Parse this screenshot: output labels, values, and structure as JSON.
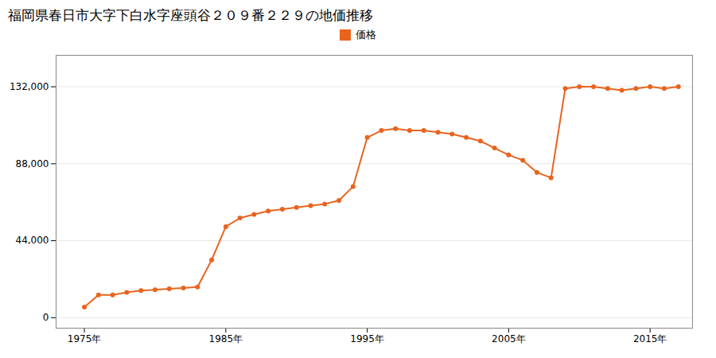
{
  "chart_data": {
    "type": "line",
    "title": "福岡県春日市大字下白水字座頭谷２０９番２２９の地価推移",
    "x": [
      1975,
      1976,
      1977,
      1978,
      1979,
      1980,
      1981,
      1982,
      1983,
      1984,
      1985,
      1986,
      1987,
      1988,
      1989,
      1990,
      1991,
      1992,
      1993,
      1994,
      1995,
      1996,
      1997,
      1998,
      1999,
      2000,
      2001,
      2002,
      2003,
      2004,
      2005,
      2006,
      2007,
      2008,
      2009,
      2010,
      2011,
      2012,
      2013,
      2014,
      2015,
      2016,
      2017
    ],
    "series": [
      {
        "name": "価格",
        "color": "#e8641e",
        "marker": "circle",
        "values": [
          6000,
          13000,
          13000,
          14500,
          15500,
          16000,
          16500,
          17000,
          17500,
          33000,
          52000,
          57000,
          59000,
          61000,
          62000,
          63000,
          64000,
          65000,
          67000,
          75000,
          103000,
          107000,
          108000,
          107000,
          107000,
          106000,
          105000,
          103000,
          101000,
          97000,
          93000,
          90000,
          83000,
          80000,
          131000,
          132000,
          132000,
          131000,
          130000,
          131000,
          132000,
          131000,
          132000
        ]
      }
    ],
    "xlim": [
      1973,
      2018
    ],
    "xticks": [
      {
        "value": 1975,
        "label": "1975年"
      },
      {
        "value": 1985,
        "label": "1985年"
      },
      {
        "value": 1995,
        "label": "1995年"
      },
      {
        "value": 2005,
        "label": "2005年"
      },
      {
        "value": 2015,
        "label": "2015年"
      }
    ],
    "ylim": [
      -6000,
      150000
    ],
    "yticks": [
      0,
      {
        "value": 44000,
        "label": "44,000"
      },
      {
        "value": 88000,
        "label": "88,000"
      },
      {
        "value": 132000,
        "label": "132,000"
      }
    ],
    "grid": "y",
    "legend": "top"
  }
}
